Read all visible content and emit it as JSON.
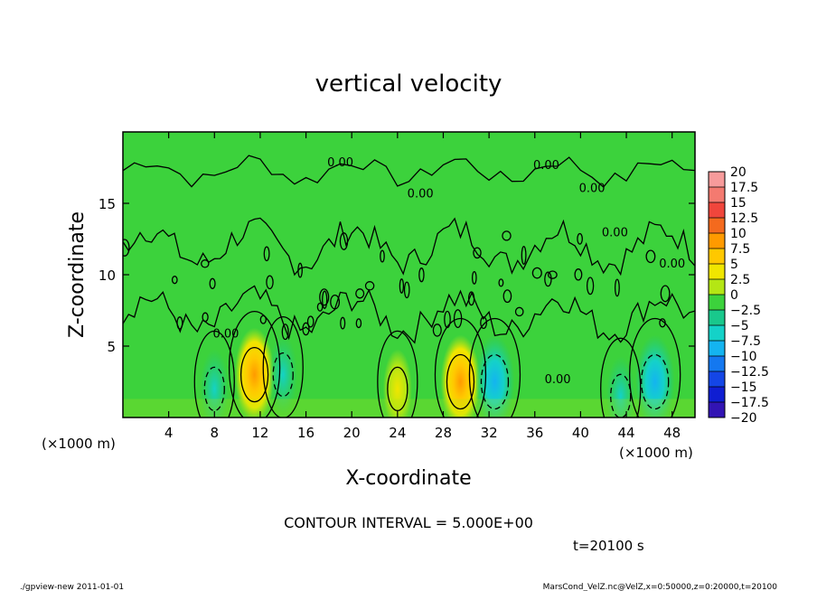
{
  "chart_data": {
    "type": "heatmap",
    "title": "vertical velocity",
    "xlabel": "X-coordinate",
    "ylabel": "Z-coordinate",
    "x_unit": "(×1000 m)",
    "y_unit": "(×1000 m)",
    "xlim": [
      0,
      50
    ],
    "ylim": [
      0,
      20
    ],
    "x_ticks": [
      4,
      8,
      12,
      16,
      20,
      24,
      28,
      32,
      36,
      40,
      44,
      48
    ],
    "y_ticks": [
      5,
      10,
      15
    ],
    "contour_interval_text": "CONTOUR INTERVAL = 5.000E+00",
    "time_text": "t=20100 s",
    "contour_labels": [
      "0.00",
      "0.00",
      "0.00",
      "0.00",
      "0.00",
      "0.00",
      "0.00",
      "0.00"
    ],
    "colorbar": {
      "levels": [
        "20",
        "17.5",
        "15",
        "12.5",
        "10",
        "7.5",
        "5",
        "2.5",
        "0",
        "−2.5",
        "−5",
        "−7.5",
        "−10",
        "−12.5",
        "−15",
        "−17.5",
        "−20"
      ],
      "colors": [
        "#f79b9b",
        "#f47a70",
        "#f0463c",
        "#f46a1e",
        "#ff9a00",
        "#ffc800",
        "#f0e600",
        "#b4e614",
        "#3cd23c",
        "#19c88c",
        "#14d2c8",
        "#14b4f0",
        "#1478f0",
        "#1446e6",
        "#0f1ed2",
        "#3214b4",
        "#6414b4"
      ]
    },
    "peaks": [
      {
        "x": 11.5,
        "z": 3.0,
        "value": 10,
        "sign": "positive"
      },
      {
        "x": 29.5,
        "z": 2.5,
        "value": 10,
        "sign": "positive"
      },
      {
        "x": 24,
        "z": 2.0,
        "value": 5,
        "sign": "positive"
      },
      {
        "x": 8,
        "z": 2.0,
        "value": -5,
        "sign": "negative"
      },
      {
        "x": 14,
        "z": 3.0,
        "value": -5,
        "sign": "negative"
      },
      {
        "x": 32.5,
        "z": 2.5,
        "value": -7.5,
        "sign": "negative"
      },
      {
        "x": 46.5,
        "z": 2.5,
        "value": -7.5,
        "sign": "negative"
      },
      {
        "x": 43.5,
        "z": 1.5,
        "value": -5,
        "sign": "negative"
      }
    ],
    "grid": false,
    "legend": "right"
  },
  "footer": {
    "left": "./gpview-new   2011-01-01",
    "right": "MarsCond_VelZ.nc@VelZ,x=0:50000,z=0:20000,t=20100"
  }
}
